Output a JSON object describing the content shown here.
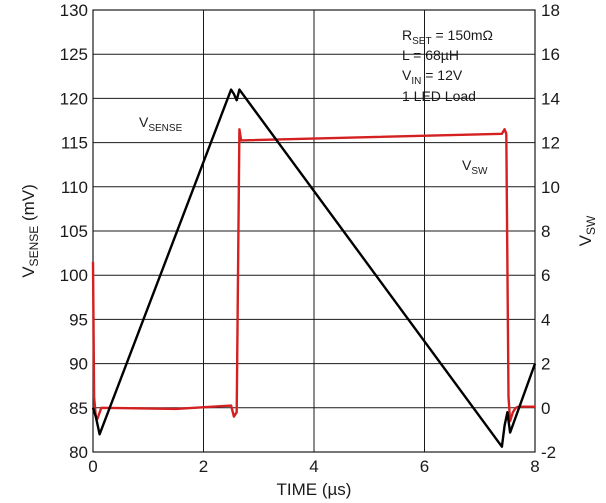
{
  "chart_data": {
    "type": "line",
    "xlabel": "TIME (µs)",
    "ylabel_main": "V",
    "ylabel_sub": "SENSE",
    "ylabel_unit": " (mV)",
    "y2label_main": "V",
    "y2label_sub": "SW",
    "xlim": [
      0,
      8
    ],
    "ylim": [
      80,
      130
    ],
    "y2lim": [
      -2,
      18
    ],
    "xticks": [
      0,
      2,
      4,
      6,
      8
    ],
    "yticks": [
      80,
      85,
      90,
      95,
      100,
      105,
      110,
      115,
      120,
      125,
      130
    ],
    "y2ticks": [
      -2,
      0,
      2,
      4,
      6,
      8,
      10,
      12,
      14,
      16,
      18
    ],
    "grid": true,
    "annotations": {
      "rset_main": "R",
      "rset_sub": "SET",
      "rset_val": " = 150mΩ",
      "l": "L = 68µH",
      "vin_main": "V",
      "vin_sub": "IN",
      "vin_val": " = 12V",
      "load": "1 LED Load"
    },
    "series": [
      {
        "name_main": "V",
        "name_sub": "SENSE",
        "axis": "left",
        "color": "#000000",
        "x": [
          0.0,
          0.05,
          0.12,
          2.5,
          2.55,
          2.6,
          2.65,
          7.4,
          7.45,
          7.5,
          7.55,
          8.0
        ],
        "y": [
          85.0,
          84.0,
          82.0,
          121.0,
          120.5,
          119.8,
          121.0,
          80.6,
          83.0,
          84.5,
          82.2,
          90.0
        ]
      },
      {
        "name_main": "V",
        "name_sub": "SW",
        "axis": "right",
        "color": "#d42020",
        "x": [
          0.0,
          0.02,
          0.05,
          0.08,
          0.15,
          1.5,
          2.5,
          2.55,
          2.6,
          2.65,
          2.68,
          7.4,
          7.45,
          7.48,
          7.52,
          7.55,
          7.6,
          7.65,
          7.7,
          8.0
        ],
        "y": [
          6.6,
          0.5,
          -0.4,
          -0.5,
          0.0,
          -0.05,
          0.1,
          -0.4,
          -0.2,
          12.6,
          12.1,
          12.4,
          12.6,
          12.4,
          0.5,
          -0.6,
          -0.2,
          0.0,
          0.05,
          0.05
        ]
      }
    ]
  }
}
